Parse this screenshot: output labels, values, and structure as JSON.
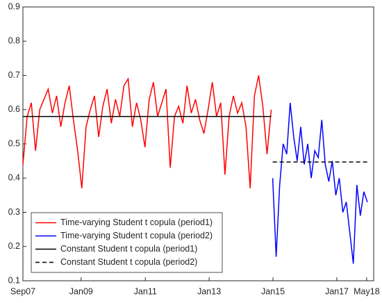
{
  "chart_data": {
    "type": "line",
    "xlim": [
      0,
      1000
    ],
    "xticks": [
      {
        "value": 0,
        "label": "Sep07"
      },
      {
        "value": 166,
        "label": "Jan09"
      },
      {
        "value": 349,
        "label": "Jan11"
      },
      {
        "value": 531,
        "label": "Jan13"
      },
      {
        "value": 713,
        "label": "Jan15"
      },
      {
        "value": 895,
        "label": "Jan17"
      },
      {
        "value": 980,
        "label": "May18"
      }
    ],
    "ylim": [
      0.1,
      0.9
    ],
    "yticks": [
      0.1,
      0.2,
      0.3,
      0.4,
      0.5,
      0.6,
      0.7,
      0.8,
      0.9
    ],
    "legend": "lower-left",
    "series": [
      {
        "name": "Time-varying Student t copula (period1)",
        "color": "#ff0000",
        "dashed": false,
        "x": [
          0,
          12,
          24,
          36,
          48,
          60,
          72,
          84,
          96,
          108,
          120,
          132,
          144,
          156,
          168,
          180,
          192,
          204,
          216,
          228,
          240,
          252,
          264,
          276,
          288,
          300,
          312,
          324,
          336,
          348,
          360,
          372,
          384,
          396,
          408,
          420,
          432,
          444,
          456,
          468,
          480,
          492,
          504,
          516,
          528,
          540,
          552,
          564,
          576,
          588,
          600,
          612,
          624,
          636,
          648,
          660,
          672,
          684,
          696,
          708
        ],
        "values": [
          0.44,
          0.58,
          0.62,
          0.48,
          0.6,
          0.63,
          0.66,
          0.59,
          0.64,
          0.55,
          0.62,
          0.67,
          0.57,
          0.48,
          0.37,
          0.55,
          0.6,
          0.64,
          0.52,
          0.61,
          0.66,
          0.56,
          0.63,
          0.58,
          0.67,
          0.69,
          0.55,
          0.62,
          0.57,
          0.49,
          0.63,
          0.68,
          0.58,
          0.62,
          0.66,
          0.43,
          0.58,
          0.61,
          0.56,
          0.67,
          0.59,
          0.63,
          0.57,
          0.53,
          0.6,
          0.68,
          0.58,
          0.62,
          0.41,
          0.58,
          0.64,
          0.59,
          0.62,
          0.55,
          0.37,
          0.64,
          0.7,
          0.61,
          0.47,
          0.6
        ]
      },
      {
        "name": "Time-varying Student t copula (period2)",
        "color": "#0000ff",
        "dashed": false,
        "x": [
          712,
          722,
          732,
          742,
          752,
          762,
          772,
          782,
          792,
          802,
          812,
          822,
          832,
          842,
          852,
          862,
          872,
          882,
          892,
          902,
          912,
          922,
          932,
          942,
          952,
          962,
          972,
          982
        ],
        "values": [
          0.4,
          0.17,
          0.38,
          0.5,
          0.47,
          0.62,
          0.52,
          0.45,
          0.55,
          0.44,
          0.5,
          0.4,
          0.48,
          0.46,
          0.57,
          0.44,
          0.39,
          0.45,
          0.35,
          0.4,
          0.3,
          0.33,
          0.24,
          0.15,
          0.38,
          0.29,
          0.36,
          0.33
        ]
      },
      {
        "name": "Constant Student t copula (period1)",
        "color": "#000000",
        "dashed": false,
        "x": [
          0,
          708
        ],
        "values": [
          0.58,
          0.58
        ]
      },
      {
        "name": "Constant Student t copula (period2)",
        "color": "#000000",
        "dashed": true,
        "x": [
          712,
          982
        ],
        "values": [
          0.447,
          0.447
        ]
      }
    ]
  }
}
